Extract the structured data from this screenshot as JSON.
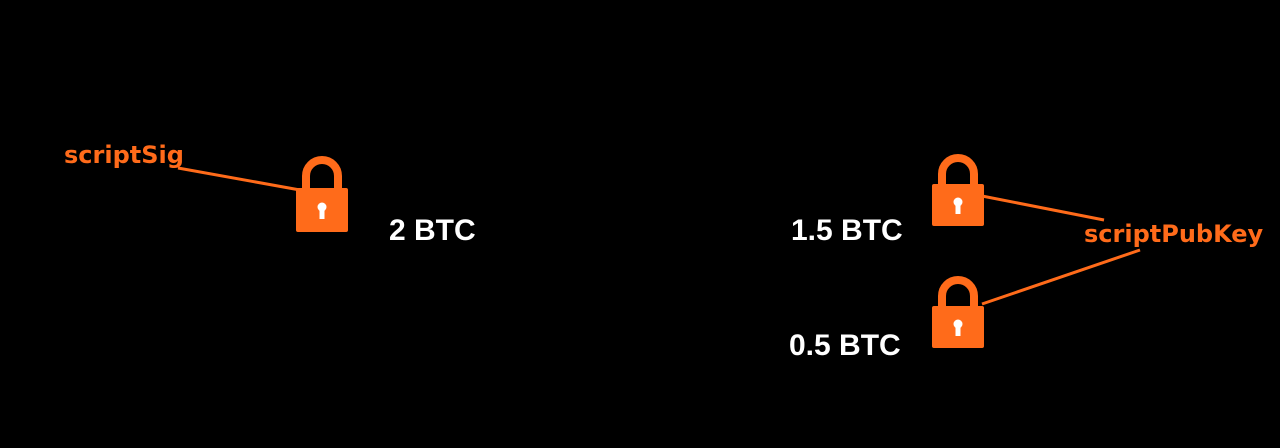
{
  "colors": {
    "accent": "#ff6b1a",
    "background": "#000000",
    "text": "#ffffff"
  },
  "input": {
    "script_label": "scriptSig",
    "amount": "2 BTC",
    "icon": "padlock-icon"
  },
  "outputs": [
    {
      "amount": "1.5 BTC",
      "icon": "padlock-icon"
    },
    {
      "amount": "0.5 BTC",
      "icon": "padlock-icon"
    }
  ],
  "output_script_label": "scriptPubKey"
}
